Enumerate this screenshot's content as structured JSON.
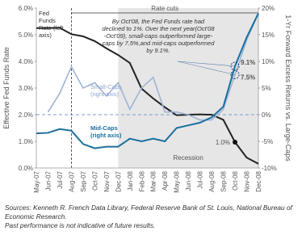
{
  "chart_data": {
    "type": "line",
    "annotations": {
      "rate_cuts": "Rate cuts",
      "recession": "Recession",
      "note": "By Oct'08, the Fed Funds rate had declined to 1%. Over the next year(Oct'08 -Oct'09), small-caps outperformed large-caps by 7.5%,and mid-caps outperformed by 9.1%."
    },
    "y_label": "Effective Fed Funds Rate",
    "y2_label": "1-Yr Forward Excess Returns vs. Large-Caps",
    "categories": [
      "May-07",
      "Jun-07",
      "Jul-07",
      "Aug-07",
      "Sep-07",
      "Oct-07",
      "Nov-07",
      "Dec-07",
      "Jan-08",
      "Feb-08",
      "Mar-08",
      "Apr-08",
      "May-08",
      "Jun-08",
      "Jul-08",
      "Aug-08",
      "Sep-08",
      "Oct-08",
      "Nov-08",
      "Dec-08"
    ],
    "series": [
      {
        "name": "Fed Funds Rate (left axis)",
        "color": "#222222",
        "axis": "y",
        "values": [
          5.25,
          5.25,
          5.26,
          5.02,
          4.94,
          4.76,
          4.49,
          4.24,
          3.94,
          2.98,
          2.61,
          2.28,
          1.98,
          2.0,
          2.01,
          2.0,
          1.81,
          0.97,
          0.39,
          0.16
        ],
        "value_labels": [
          null,
          null,
          null,
          null,
          null,
          null,
          null,
          null,
          null,
          null,
          null,
          null,
          null,
          null,
          null,
          null,
          null,
          "1.0%",
          null,
          null
        ]
      },
      {
        "name": "Small-Caps (right axis)",
        "color": "#9fb4d6",
        "axis": "y2",
        "values": [
          null,
          0.5,
          4,
          9,
          5,
          6,
          3.5,
          6,
          1,
          5,
          7,
          0.5,
          0.5,
          0,
          -1,
          -1,
          1,
          7.5,
          14,
          19
        ],
        "value_labels": [
          null,
          null,
          null,
          null,
          null,
          null,
          null,
          null,
          null,
          null,
          null,
          null,
          null,
          null,
          null,
          null,
          null,
          "7.5%",
          null,
          null
        ]
      },
      {
        "name": "Mid-Caps (right axis)",
        "color": "#1b6f9e",
        "axis": "y2",
        "values": [
          -3.5,
          -3.4,
          -2.7,
          -3,
          -5.5,
          -6.3,
          -6,
          -6,
          -4.5,
          -5,
          -4.5,
          -5,
          -2.5,
          -2,
          -1.5,
          -0.5,
          1.5,
          9.1,
          14.5,
          19
        ],
        "value_labels": [
          null,
          null,
          null,
          null,
          null,
          null,
          null,
          null,
          null,
          null,
          null,
          null,
          null,
          null,
          null,
          null,
          null,
          "9.1%",
          null,
          null
        ]
      }
    ],
    "ylim": [
      0,
      6
    ],
    "yticks": [
      {
        "value": 0,
        "label": "0.0%"
      },
      {
        "value": 1,
        "label": "1.0%"
      },
      {
        "value": 2,
        "label": "2.0%"
      },
      {
        "value": 3,
        "label": "3.0%"
      },
      {
        "value": 4,
        "label": "4.0%"
      },
      {
        "value": 5,
        "label": "5.0%"
      },
      {
        "value": 6,
        "label": "6.0%"
      }
    ],
    "y2lim": [
      -10,
      20
    ],
    "y2ticks": [
      {
        "value": -10,
        "label": "-10%"
      },
      {
        "value": -5,
        "label": "-5%"
      },
      {
        "value": 0,
        "label": "0%"
      },
      {
        "value": 5,
        "label": "5%"
      },
      {
        "value": 10,
        "label": "10%"
      },
      {
        "value": 15,
        "label": "15%"
      },
      {
        "value": 20,
        "label": "20%"
      }
    ],
    "footer": [
      "Sources: Kenneth R. French Data Library, Federal Reserve Bank of St. Louis, National Bureau of Economic Research.",
      "Past performance is not indicative of future results."
    ]
  }
}
